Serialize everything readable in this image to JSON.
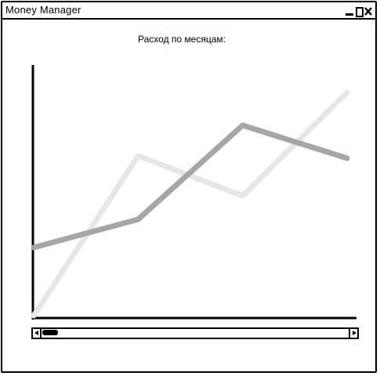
{
  "window": {
    "title": "Money Manager"
  },
  "icons": {
    "minimize": "minimize-icon",
    "maximize": "maximize-icon",
    "close": "close-icon",
    "scroll_left": "arrow-left-icon",
    "scroll_right": "arrow-right-icon"
  },
  "chart_data": {
    "type": "line",
    "title": "Расход по месяцам:",
    "xlabel": "",
    "ylabel": "",
    "x": [
      1,
      2,
      3,
      4
    ],
    "ylim": [
      0,
      100
    ],
    "grid": false,
    "series": [
      {
        "color": "#a6a6a6",
        "values": [
          29,
          41,
          81,
          67
        ]
      },
      {
        "color": "#e6e6e6",
        "values": [
          0,
          68,
          51,
          95
        ]
      }
    ]
  },
  "scrollbar": {
    "position": 0.0
  }
}
